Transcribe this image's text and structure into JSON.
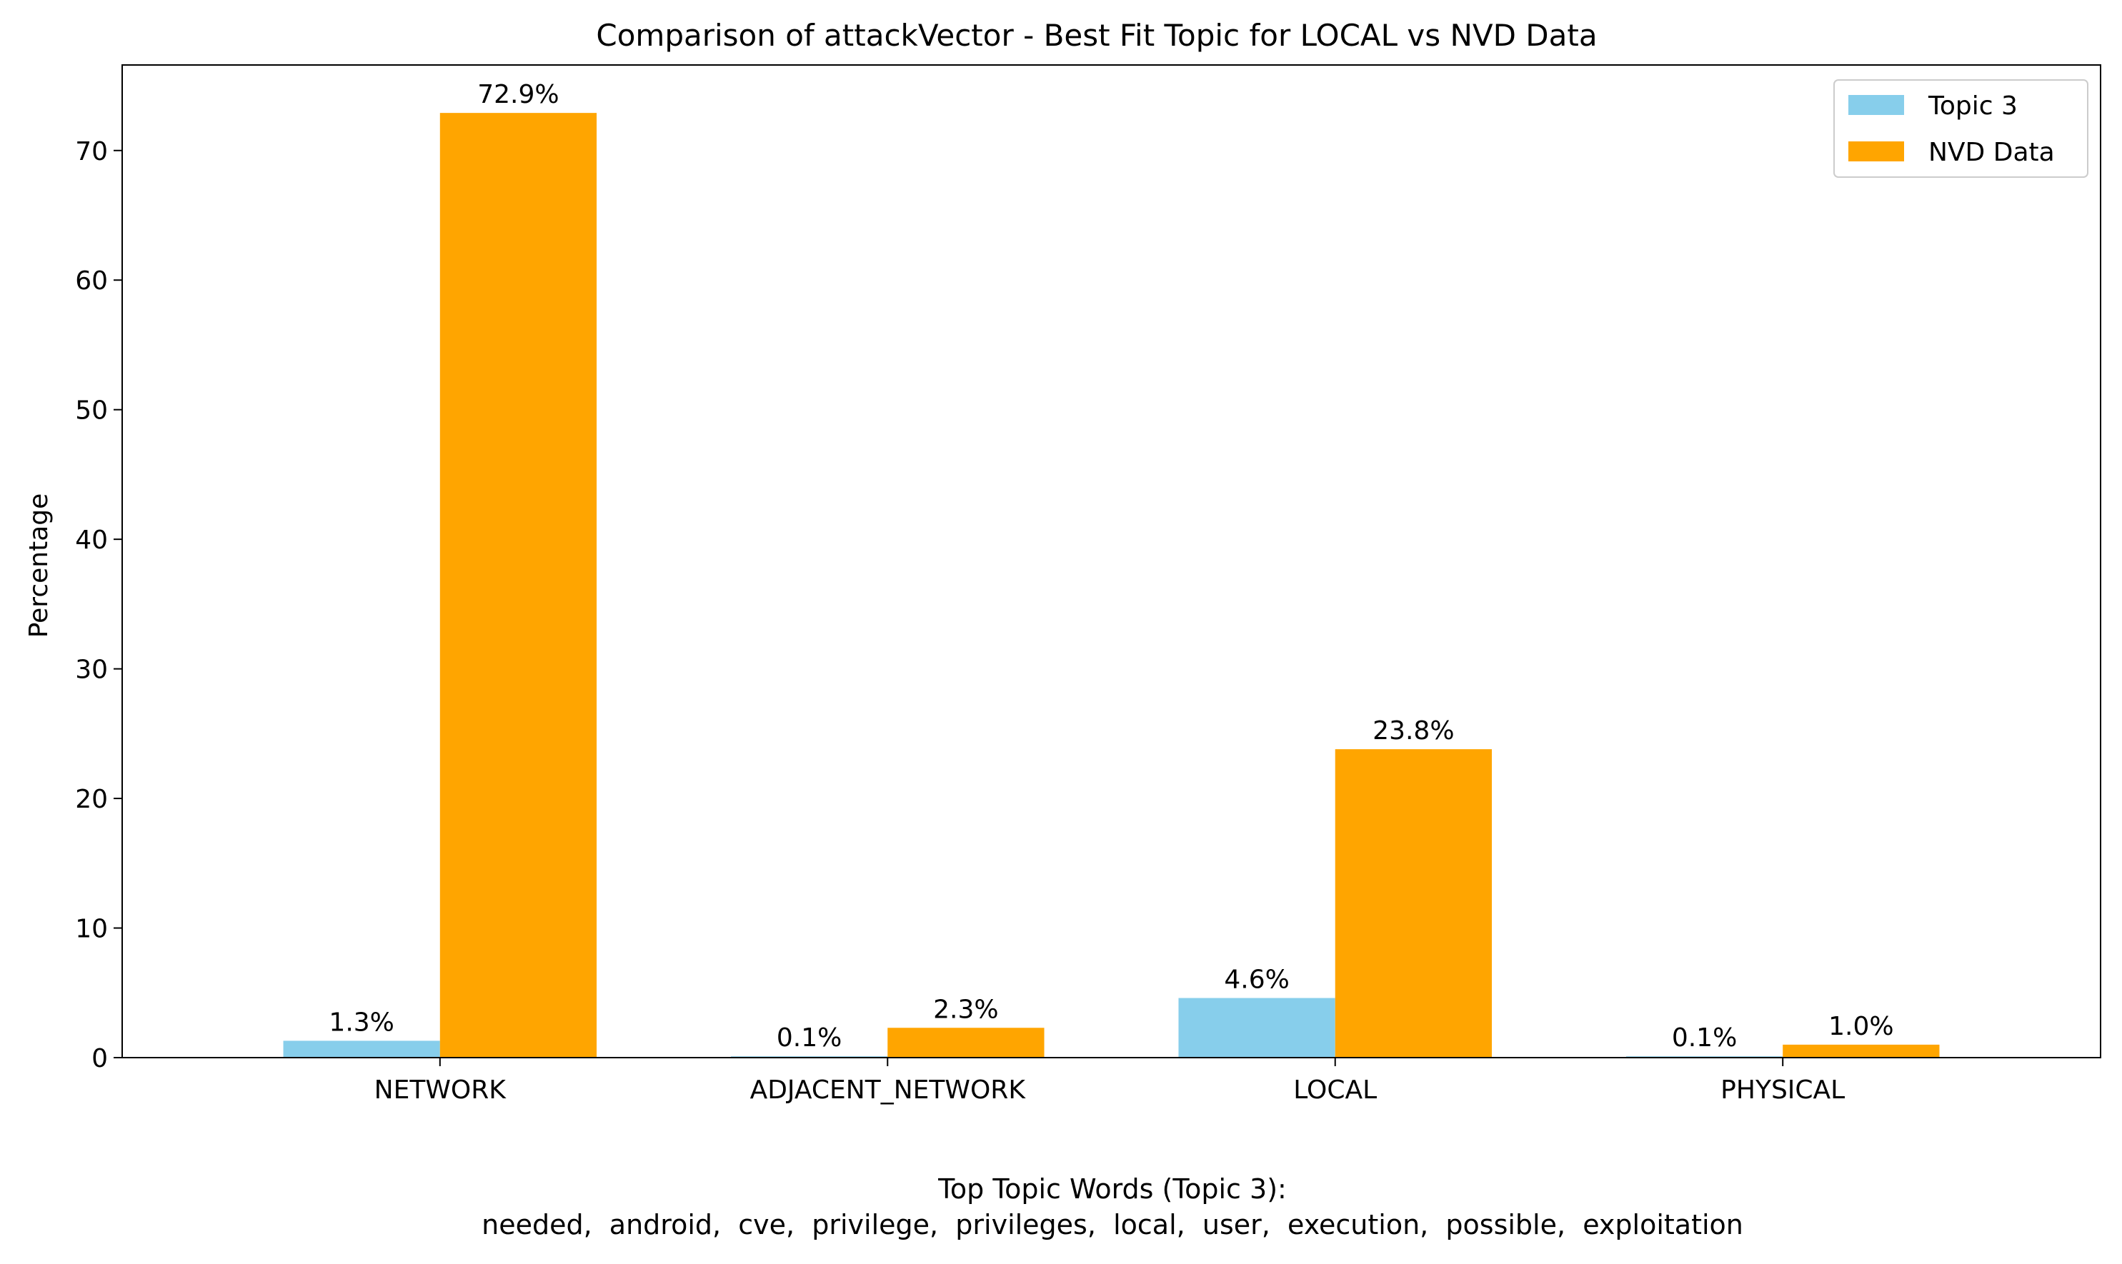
{
  "chart_data": {
    "type": "bar",
    "title": "Comparison of attackVector - Best Fit Topic for LOCAL vs NVD Data",
    "xlabel": "",
    "ylabel": "Percentage",
    "categories": [
      "NETWORK",
      "ADJACENT_NETWORK",
      "LOCAL",
      "PHYSICAL"
    ],
    "series": [
      {
        "name": "Topic 3",
        "color": "#87ceeb",
        "values": [
          1.3,
          0.1,
          4.6,
          0.1
        ],
        "labels": [
          "1.3%",
          "0.1%",
          "4.6%",
          "0.1%"
        ]
      },
      {
        "name": "NVD Data",
        "color": "#ffa500",
        "values": [
          72.9,
          2.3,
          23.8,
          1.0
        ],
        "labels": [
          "72.9%",
          "2.3%",
          "23.8%",
          "1.0%"
        ]
      }
    ],
    "ylim": [
      0,
      76.6
    ],
    "yticks": [
      0,
      10,
      20,
      30,
      40,
      50,
      60,
      70
    ],
    "ytick_labels": [
      "0",
      "10",
      "20",
      "30",
      "40",
      "50",
      "60",
      "70"
    ],
    "grid": false,
    "legend_position": "top-right",
    "footer": {
      "heading": "Top Topic Words (Topic 3):",
      "words": "needed,  android,  cve,  privilege,  privileges,  local,  user,  execution,  possible,  exploitation"
    }
  }
}
